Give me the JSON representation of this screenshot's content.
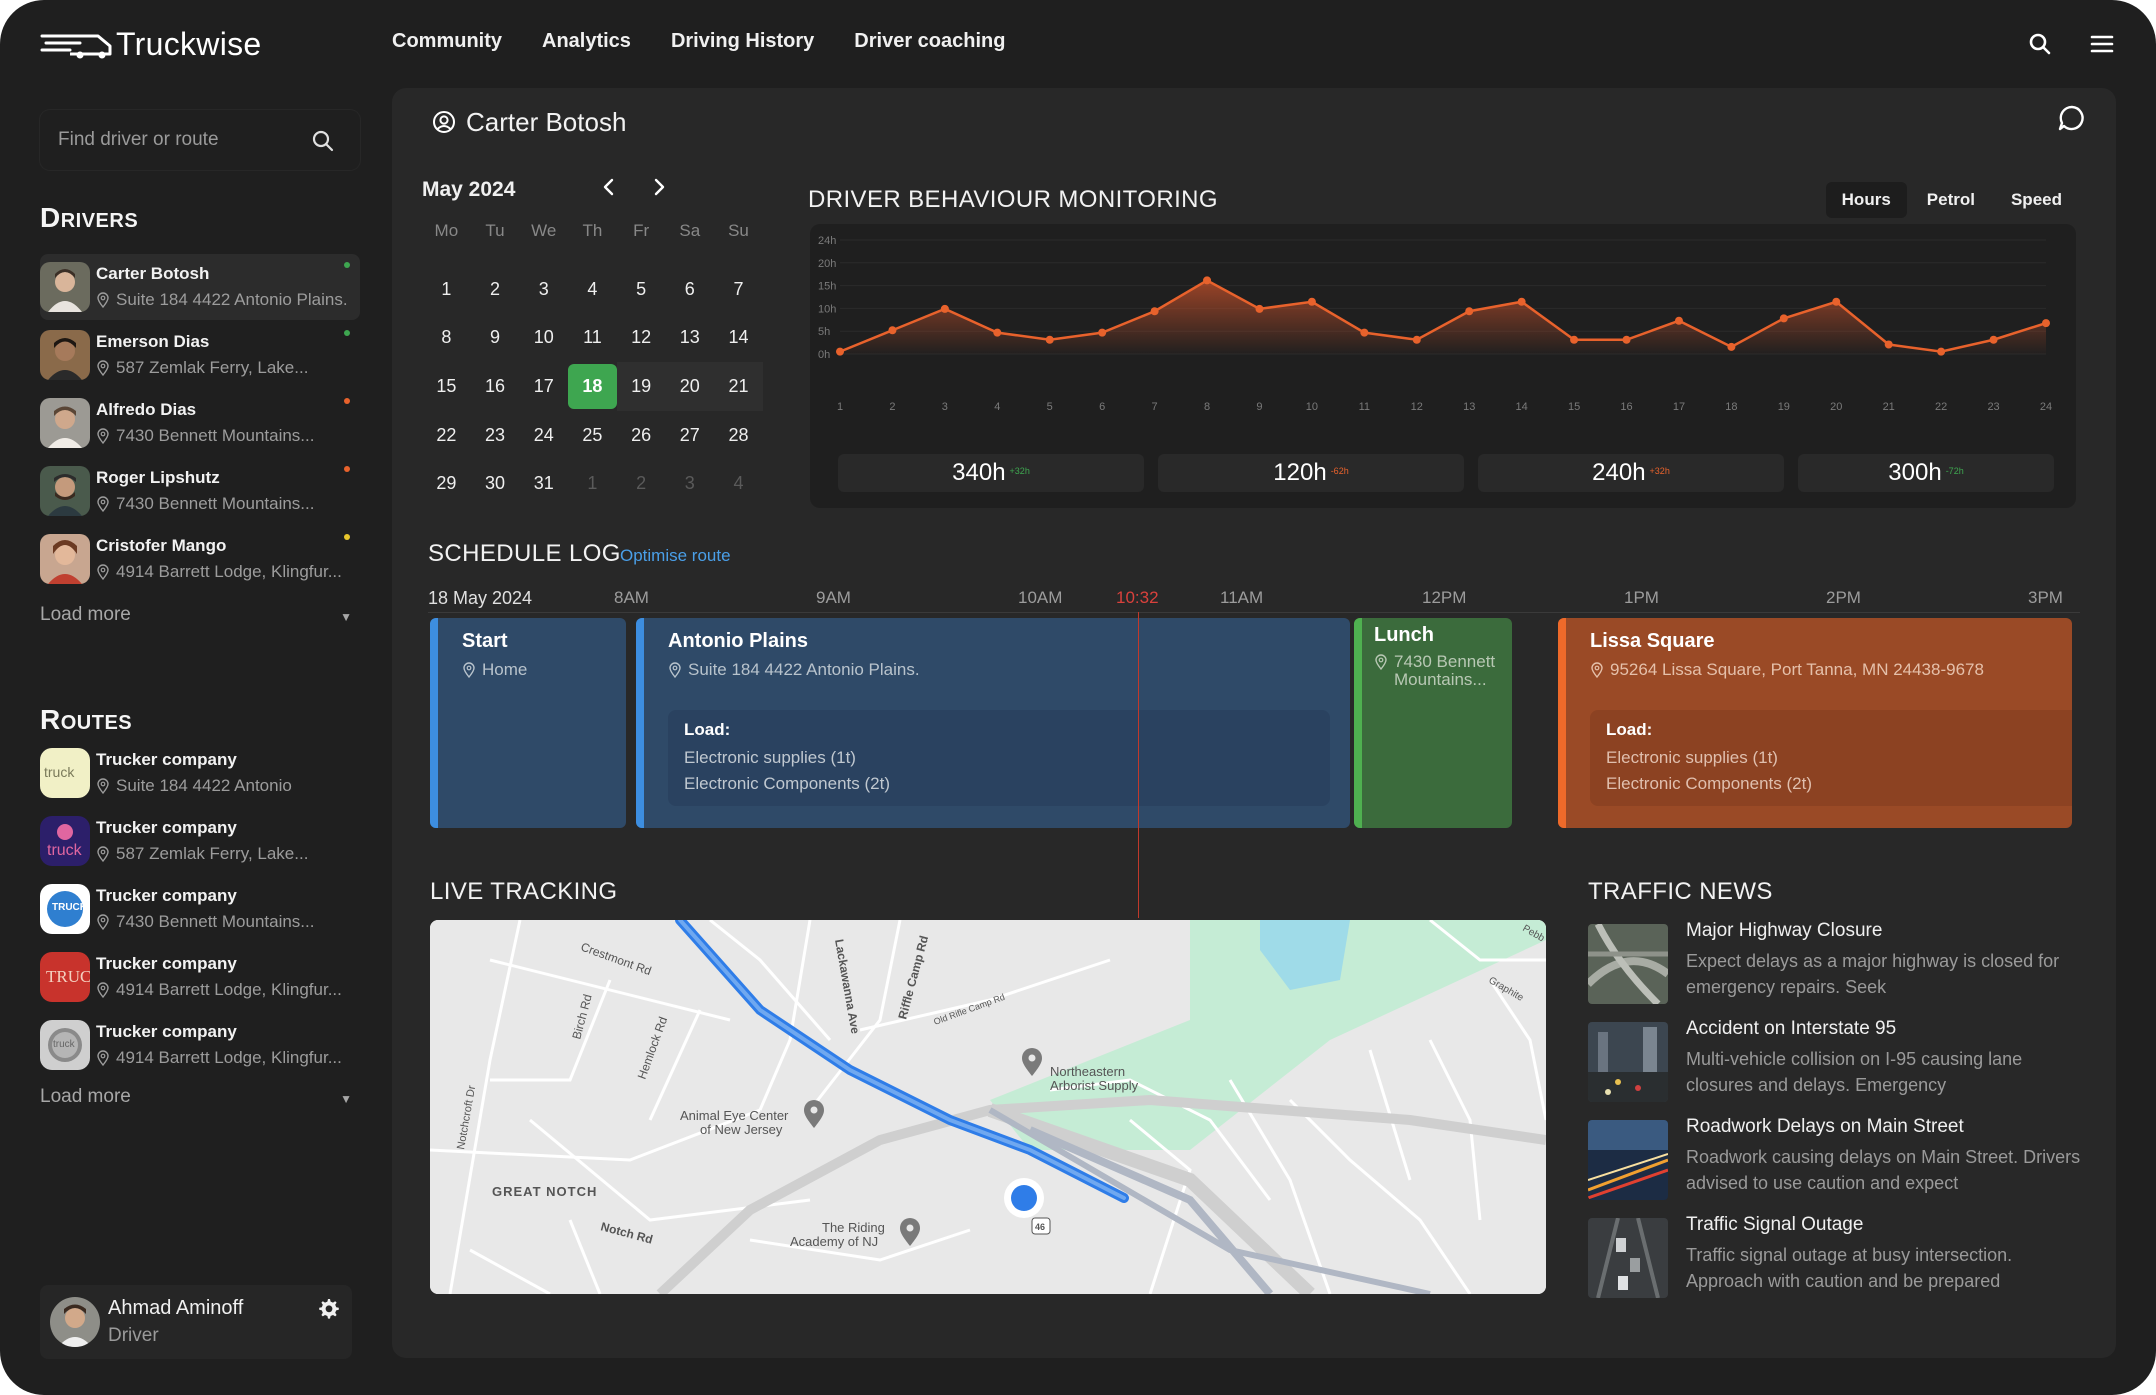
{
  "app": {
    "name": "Truckwise"
  },
  "nav": [
    "Community",
    "Analytics",
    "Driving History",
    "Driver coaching"
  ],
  "search": {
    "placeholder": "Find driver or route"
  },
  "drivers": {
    "title": "Drivers",
    "items": [
      {
        "name": "Carter Botosh",
        "address": "Suite 184 4422 Antonio Plains.",
        "status_color": "#3ea650"
      },
      {
        "name": "Emerson Dias",
        "address": "587 Zemlak Ferry, Lake...",
        "status_color": "#3ea650"
      },
      {
        "name": "Alfredo Dias",
        "address": "7430 Bennett Mountains...",
        "status_color": "#e8622c"
      },
      {
        "name": "Roger Lipshutz",
        "address": "7430 Bennett Mountains...",
        "status_color": "#e8622c"
      },
      {
        "name": "Cristofer Mango",
        "address": "4914 Barrett Lodge, Klingfur...",
        "status_color": "#e8c62c"
      }
    ],
    "load_more": "Load more"
  },
  "routes": {
    "title": "Routes",
    "items": [
      {
        "name": "Trucker company",
        "address": "Suite 184 4422 Antonio",
        "logo_text": "truck"
      },
      {
        "name": "Trucker company",
        "address": "587 Zemlak Ferry, Lake...",
        "logo_text": "truck"
      },
      {
        "name": "Trucker company",
        "address": "7430 Bennett Mountains...",
        "logo_text": "TRUCK"
      },
      {
        "name": "Trucker company",
        "address": "4914 Barrett Lodge, Klingfur...",
        "logo_text": "TRUCK"
      },
      {
        "name": "Trucker company",
        "address": "4914 Barrett Lodge, Klingfur...",
        "logo_text": "truck"
      }
    ],
    "load_more": "Load more"
  },
  "user": {
    "name": "Ahmad Aminoff",
    "role": "Driver"
  },
  "selected_driver": "Carter Botosh",
  "calendar": {
    "month": "May 2024",
    "weekdays": [
      "Mo",
      "Tu",
      "We",
      "Th",
      "Fr",
      "Sa",
      "Su"
    ],
    "weeks": [
      [
        "1",
        "2",
        "3",
        "4",
        "5",
        "6",
        "7"
      ],
      [
        "8",
        "9",
        "10",
        "11",
        "12",
        "13",
        "14"
      ],
      [
        "15",
        "16",
        "17",
        "18",
        "19",
        "20",
        "21"
      ],
      [
        "22",
        "23",
        "24",
        "25",
        "26",
        "27",
        "28"
      ],
      [
        "29",
        "30",
        "31",
        "1",
        "2",
        "3",
        "4"
      ]
    ],
    "selected": "18"
  },
  "behaviour": {
    "title": "Driver Behaviour Monitoring",
    "tabs": [
      "Hours",
      "Petrol",
      "Speed"
    ],
    "active_tab": "Hours",
    "stats": [
      {
        "value": "340h",
        "delta": "+32h",
        "delta_color": "#3ea650"
      },
      {
        "value": "120h",
        "delta": "-62h",
        "delta_color": "#e8622c"
      },
      {
        "value": "240h",
        "delta": "+32h",
        "delta_color": "#e8622c"
      },
      {
        "value": "300h",
        "delta": "-72h",
        "delta_color": "#3ea650"
      }
    ]
  },
  "chart_data": {
    "type": "area",
    "x": [
      1,
      2,
      3,
      4,
      5,
      6,
      7,
      8,
      9,
      10,
      11,
      12,
      13,
      14,
      15,
      16,
      17,
      18,
      19,
      20,
      21,
      22,
      23,
      24
    ],
    "values": [
      0.5,
      5,
      9.5,
      4.5,
      3,
      4.5,
      9,
      15.5,
      9.5,
      11,
      4.5,
      3,
      9,
      11,
      3,
      3,
      7,
      1.5,
      7.5,
      11,
      2,
      0.5,
      3,
      6.5
    ],
    "y_ticks": [
      "24h",
      "20h",
      "15h",
      "10h",
      "5h",
      "0h"
    ],
    "ylim": [
      0,
      24
    ],
    "line_color": "#e8622c"
  },
  "schedule": {
    "title": "Schedule Log",
    "optimise_label": "Optimise route",
    "date": "18 May 2024",
    "times": [
      "8AM",
      "9AM",
      "10AM",
      "10:32",
      "11AM",
      "12PM",
      "1PM",
      "2PM",
      "3PM"
    ],
    "blocks": {
      "start": {
        "title": "Start",
        "sub": "Home"
      },
      "antonio": {
        "title": "Antonio Plains",
        "sub": "Suite 184 4422 Antonio Plains.",
        "load_title": "Load:",
        "load": [
          "Electronic supplies (1t)",
          "Electronic Components (2t)"
        ]
      },
      "lunch": {
        "title": "Lunch",
        "sub": "7430 Bennett",
        "sub2": "Mountains..."
      },
      "lissa": {
        "title": "Lissa Square",
        "sub": "95264 Lissa Square, Port Tanna, MN 24438-9678",
        "load_title": "Load:",
        "load": [
          "Electronic supplies (1t)",
          "Electronic Components (2t)"
        ]
      }
    }
  },
  "live_tracking": {
    "title": "Live Tracking",
    "map_labels": {
      "crestmont": "Crestmont Rd",
      "birch": "Birch Rd",
      "hemlock": "Hemlock Rd",
      "lackawanna": "Lackawanna Ave",
      "riffle": "Riffle Camp Rd",
      "old_rifle": "Old Rifle Camp Rd",
      "northeastern": "Northeastern",
      "arborist": "Arborist Supply",
      "animal_eye": "Animal Eye Center",
      "new_jersey": "of New Jersey",
      "notchcroft": "Notchcroft Dr",
      "great_notch": "GREAT NOTCH",
      "notch_rd": "Notch Rd",
      "riding": "The Riding",
      "academy": "Academy of NJ",
      "graphite": "Graphite",
      "peb": "Pebb",
      "route_46": "46"
    }
  },
  "traffic_news": {
    "title": "Traffic News",
    "items": [
      {
        "title": "Major Highway Closure",
        "body": "Expect delays as a major highway is closed for emergency repairs. Seek"
      },
      {
        "title": "Accident on Interstate 95",
        "body": "Multi-vehicle collision on I-95 causing lane closures and delays. Emergency"
      },
      {
        "title": "Roadwork Delays on Main Street",
        "body": "Roadwork causing delays on Main Street. Drivers advised to use caution and expect"
      },
      {
        "title": "Traffic Signal Outage",
        "body": "Traffic signal outage at busy intersection. Approach with caution and be prepared"
      }
    ]
  }
}
